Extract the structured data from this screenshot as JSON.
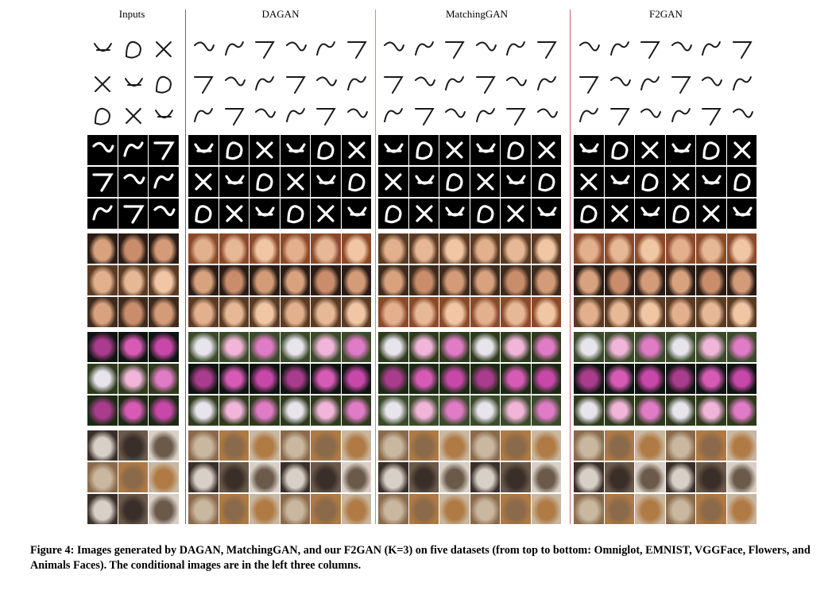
{
  "figure": {
    "panels": [
      {
        "title": "Inputs",
        "columns": 3,
        "key": "inputs"
      },
      {
        "title": "DAGAN",
        "columns": 6,
        "key": "dagan"
      },
      {
        "title": "MatchingGAN",
        "columns": 6,
        "key": "matchinggan"
      },
      {
        "title": "F2GAN",
        "columns": 6,
        "key": "f2gan"
      }
    ],
    "divider_colors": [
      "#2c8a6a",
      "#6fbf6a",
      "#c46a6a"
    ],
    "datasets": [
      {
        "name": "Omniglot",
        "rows": 3,
        "style": "glyph-light"
      },
      {
        "name": "EMNIST",
        "rows": 3,
        "style": "glyph-dark"
      },
      {
        "name": "VGGFace",
        "rows": 3,
        "style": "face"
      },
      {
        "name": "Flowers",
        "rows": 3,
        "style": "flower"
      },
      {
        "name": "Animals Faces",
        "rows": 3,
        "style": "animal"
      }
    ]
  },
  "caption": {
    "text": "Figure 4: Images generated by DAGAN, MatchingGAN, and our F2GAN (K=3) on five datasets (from top to bottom: Omniglot, EMNIST, VGGFace, Flowers, and Animals Faces). The conditional images are in the left three columns."
  }
}
